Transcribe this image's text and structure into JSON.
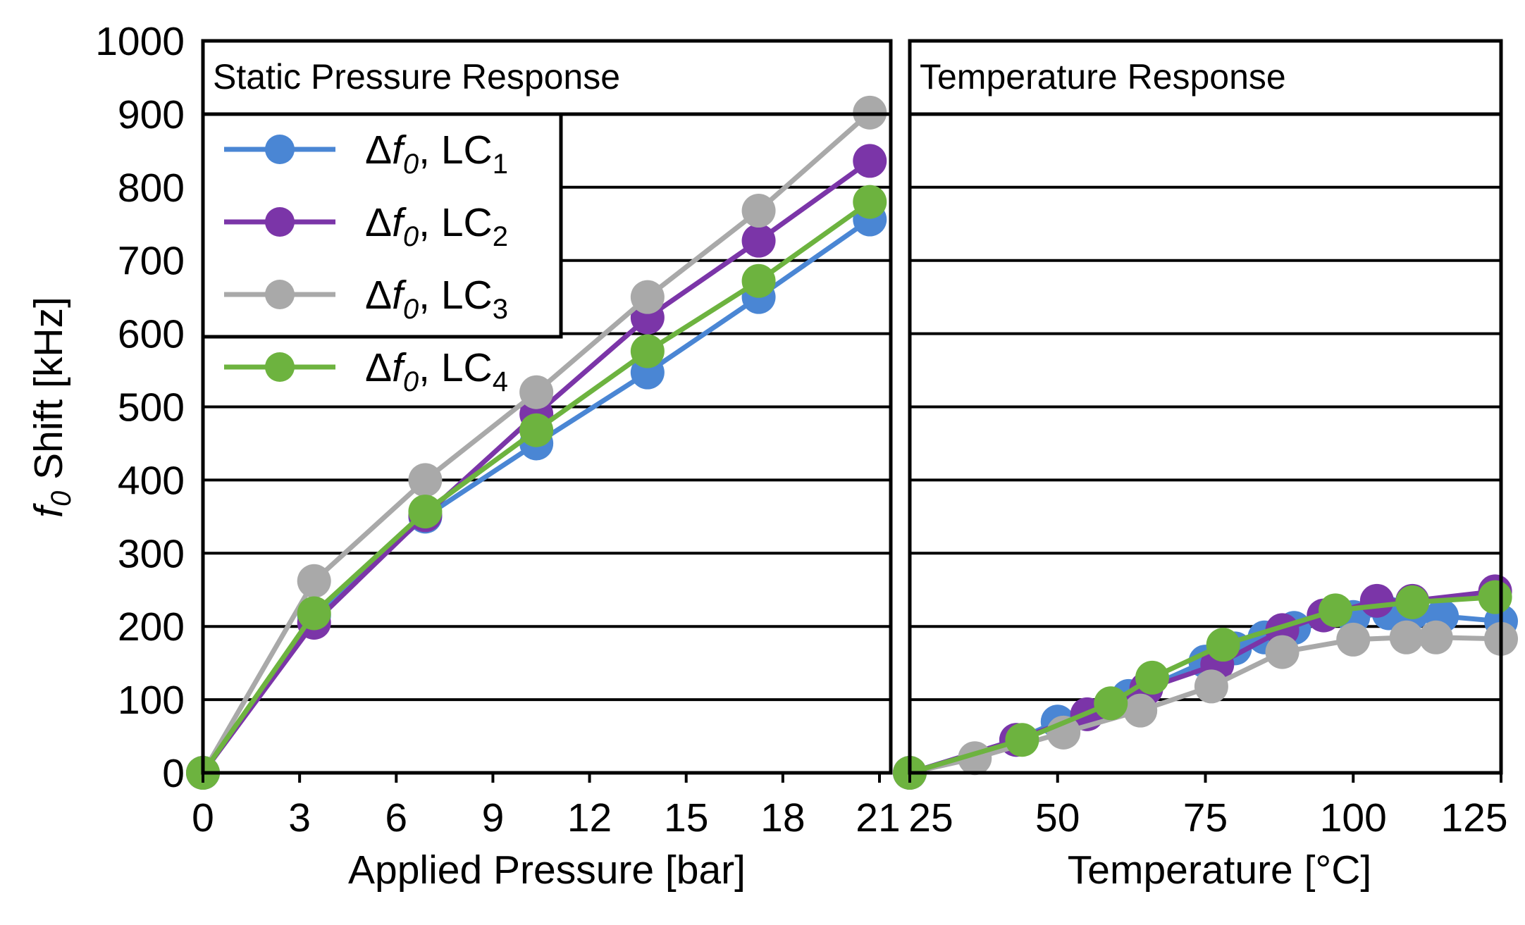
{
  "chart_data": [
    {
      "type": "line",
      "title": "Static Pressure Response",
      "xlabel": "Applied Pressure [bar]",
      "ylabel": "f0 Shift [kHz]",
      "ylabel_parts": {
        "sym": "f",
        "sub": "0",
        "rest": " Shift [kHz]"
      },
      "xlim": [
        0,
        21
      ],
      "ylim": [
        0,
        1000
      ],
      "xticks": [
        0,
        3,
        6,
        9,
        12,
        15,
        18,
        21
      ],
      "yticks": [
        0,
        100,
        200,
        300,
        400,
        500,
        600,
        700,
        800,
        900,
        1000
      ],
      "legend_position": "top-left",
      "series": [
        {
          "name": "Δf0, LC1",
          "label_parts": {
            "pre": "Δ",
            "sym": "f",
            "sub": "0",
            "mid": ", LC",
            "idx": "1"
          },
          "color": "#4a86d4",
          "x": [
            0,
            3.45,
            6.9,
            10.35,
            13.8,
            17.25,
            20.7
          ],
          "y": [
            0,
            215,
            350,
            450,
            547,
            650,
            756
          ]
        },
        {
          "name": "Δf0, LC2",
          "label_parts": {
            "pre": "Δ",
            "sym": "f",
            "sub": "0",
            "mid": ", LC",
            "idx": "2"
          },
          "color": "#7b35a8",
          "x": [
            0,
            3.45,
            6.9,
            10.35,
            13.8,
            17.25,
            20.7
          ],
          "y": [
            0,
            205,
            352,
            490,
            622,
            727,
            836
          ]
        },
        {
          "name": "Δf0, LC3",
          "label_parts": {
            "pre": "Δ",
            "sym": "f",
            "sub": "0",
            "mid": ", LC",
            "idx": "3"
          },
          "color": "#a9a9a9",
          "x": [
            0,
            3.45,
            6.9,
            10.35,
            13.8,
            17.25,
            20.7
          ],
          "y": [
            0,
            262,
            400,
            520,
            650,
            768,
            902
          ]
        },
        {
          "name": "Δf0, LC4",
          "label_parts": {
            "pre": "Δ",
            "sym": "f",
            "sub": "0",
            "mid": ", LC",
            "idx": "4"
          },
          "color": "#6db33f",
          "x": [
            0,
            3.45,
            6.9,
            10.35,
            13.8,
            17.25,
            20.7
          ],
          "y": [
            0,
            218,
            357,
            468,
            576,
            672,
            780
          ]
        }
      ]
    },
    {
      "type": "line",
      "title": "Temperature Response",
      "xlabel": "Temperature [°C]",
      "ylabel": "",
      "xlim": [
        25,
        125
      ],
      "ylim": [
        0,
        1000
      ],
      "xticks": [
        25,
        50,
        75,
        100,
        125
      ],
      "series": [
        {
          "name": "Δf0, LC1",
          "color": "#4a86d4",
          "x": [
            25,
            43,
            50,
            62,
            75,
            80,
            85,
            90,
            100,
            106,
            110,
            115,
            125
          ],
          "y": [
            0,
            45,
            70,
            105,
            152,
            170,
            185,
            198,
            213,
            218,
            218,
            214,
            207
          ]
        },
        {
          "name": "Δf0, LC2",
          "color": "#7b35a8",
          "x": [
            25,
            43,
            55,
            65,
            77,
            88,
            95,
            104,
            110,
            124
          ],
          "y": [
            0,
            45,
            80,
            115,
            148,
            195,
            215,
            235,
            235,
            248
          ]
        },
        {
          "name": "Δf0, LC3",
          "color": "#a9a9a9",
          "x": [
            25,
            36,
            51,
            64,
            76,
            88,
            100,
            109,
            114,
            125
          ],
          "y": [
            0,
            20,
            55,
            85,
            118,
            165,
            182,
            185,
            185,
            183
          ]
        },
        {
          "name": "Δf0, LC4",
          "color": "#6db33f",
          "x": [
            25,
            44,
            59,
            66,
            78,
            97,
            110,
            124
          ],
          "y": [
            0,
            45,
            95,
            130,
            175,
            222,
            233,
            240
          ]
        }
      ]
    }
  ]
}
